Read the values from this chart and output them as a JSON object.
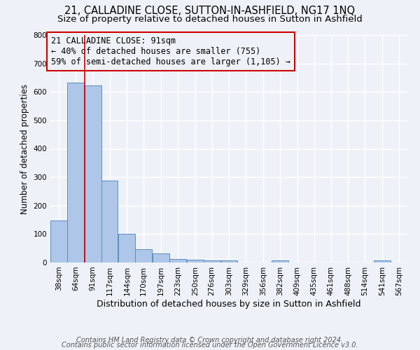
{
  "title": "21, CALLADINE CLOSE, SUTTON-IN-ASHFIELD, NG17 1NQ",
  "subtitle": "Size of property relative to detached houses in Sutton in Ashfield",
  "xlabel": "Distribution of detached houses by size in Sutton in Ashfield",
  "ylabel": "Number of detached properties",
  "bin_labels": [
    "38sqm",
    "64sqm",
    "91sqm",
    "117sqm",
    "144sqm",
    "170sqm",
    "197sqm",
    "223sqm",
    "250sqm",
    "276sqm",
    "303sqm",
    "329sqm",
    "356sqm",
    "382sqm",
    "409sqm",
    "435sqm",
    "461sqm",
    "488sqm",
    "514sqm",
    "541sqm",
    "567sqm"
  ],
  "bin_edges": [
    38,
    64,
    91,
    117,
    144,
    170,
    197,
    223,
    250,
    276,
    303,
    329,
    356,
    382,
    409,
    435,
    461,
    488,
    514,
    541,
    567
  ],
  "bar_heights": [
    148,
    632,
    624,
    288,
    101,
    46,
    31,
    12,
    10,
    7,
    8,
    0,
    0,
    7,
    0,
    0,
    0,
    0,
    0,
    8,
    0
  ],
  "bar_color": "#aec6e8",
  "bar_edge_color": "#5a8fc0",
  "property_line_x": 91,
  "property_line_color": "#cc0000",
  "annotation_title": "21 CALLADINE CLOSE: 91sqm",
  "annotation_line1": "← 40% of detached houses are smaller (755)",
  "annotation_line2": "59% of semi-detached houses are larger (1,105) →",
  "annotation_box_color": "#cc0000",
  "ylim": [
    0,
    800
  ],
  "yticks": [
    0,
    100,
    200,
    300,
    400,
    500,
    600,
    700,
    800
  ],
  "footer1": "Contains HM Land Registry data © Crown copyright and database right 2024.",
  "footer2": "Contains public sector information licensed under the Open Government Licence v3.0.",
  "background_color": "#eef2f8",
  "grid_color": "#ffffff",
  "title_fontsize": 10.5,
  "subtitle_fontsize": 9.5,
  "xlabel_fontsize": 9,
  "ylabel_fontsize": 8.5,
  "tick_fontsize": 7.5,
  "annotation_fontsize": 8.5,
  "footer_fontsize": 7
}
